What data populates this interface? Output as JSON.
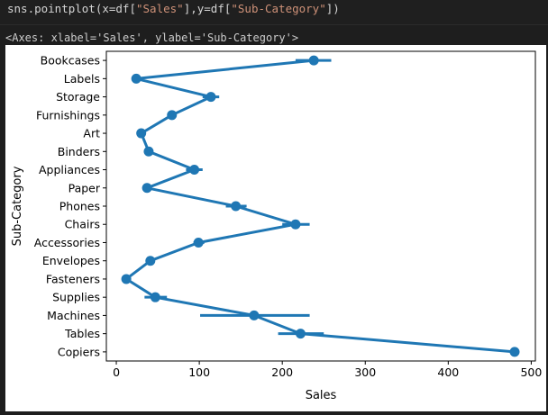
{
  "code": {
    "prefix": "sns.pointplot(x=df[",
    "x_arg": "\"Sales\"",
    "middle": "],y=df[",
    "y_arg": "\"Sub-Category\"",
    "suffix": "])"
  },
  "output_repr": "<Axes: xlabel='Sales', ylabel='Sub-Category'>",
  "chart_data": {
    "type": "line",
    "orientation": "horizontal",
    "xlabel": "Sales",
    "ylabel": "Sub-Category",
    "xlim": [
      -12,
      505
    ],
    "xticks": [
      0,
      100,
      200,
      300,
      400,
      500
    ],
    "color": "#1f77b4",
    "grid": false,
    "categories": [
      "Bookcases",
      "Labels",
      "Storage",
      "Furnishings",
      "Art",
      "Binders",
      "Appliances",
      "Paper",
      "Phones",
      "Chairs",
      "Accessories",
      "Envelopes",
      "Fasteners",
      "Supplies",
      "Machines",
      "Tables",
      "Copiers"
    ],
    "values": [
      238,
      24,
      114,
      67,
      30,
      39,
      94,
      37,
      144,
      216,
      99,
      41,
      12,
      47,
      166,
      222,
      480
    ],
    "ci": [
      [
        216,
        259
      ],
      [
        22,
        26
      ],
      [
        104,
        124
      ],
      [
        62,
        72
      ],
      [
        28,
        33
      ],
      [
        34,
        44
      ],
      [
        84,
        104
      ],
      [
        35,
        40
      ],
      [
        132,
        157
      ],
      [
        200,
        233
      ],
      [
        93,
        106
      ],
      [
        37,
        45
      ],
      [
        11,
        14
      ],
      [
        34,
        61
      ],
      [
        101,
        233
      ],
      [
        195,
        250
      ],
      [
        478,
        482
      ]
    ]
  }
}
